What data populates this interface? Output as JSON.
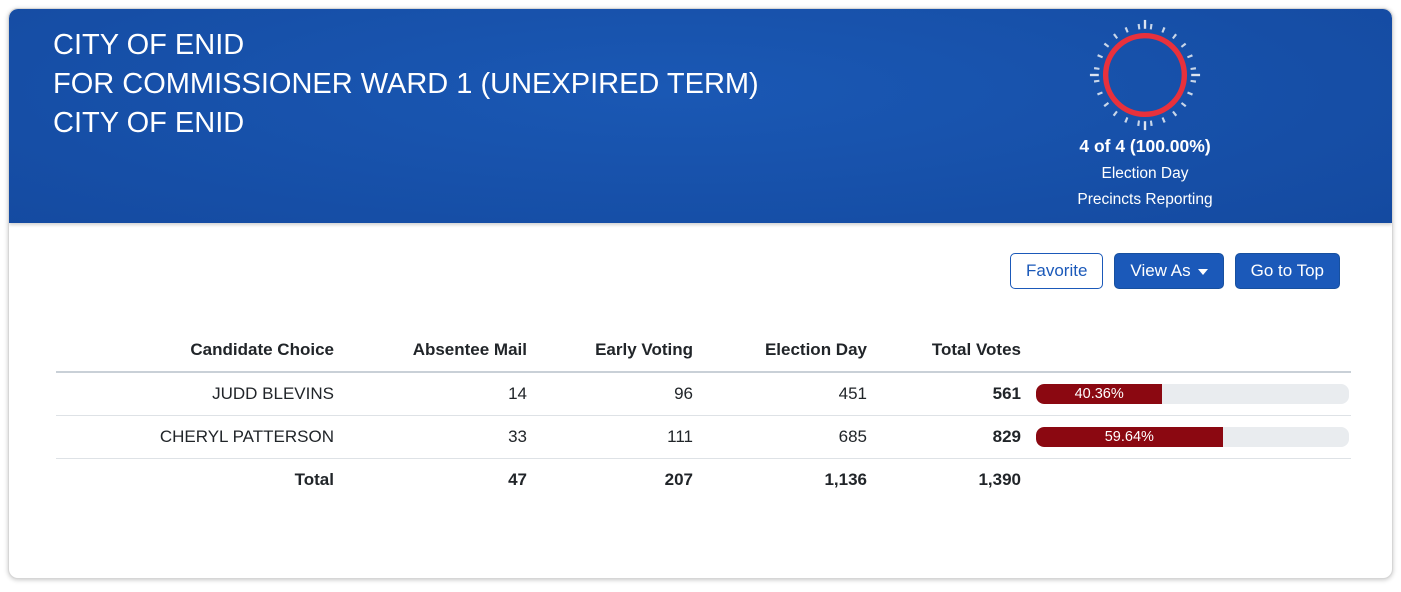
{
  "header": {
    "title_lines": [
      "CITY OF ENID",
      "FOR COMMISSIONER WARD 1 (UNEXPIRED TERM)",
      "CITY OF ENID"
    ],
    "precincts": {
      "summary": "4 of 4 (100.00%)",
      "label_line1": "Election Day",
      "label_line2": "Precincts Reporting"
    }
  },
  "toolbar": {
    "favorite_label": "Favorite",
    "view_as_label": "View As",
    "go_to_top_label": "Go to Top"
  },
  "results": {
    "columns": [
      "Candidate Choice",
      "Absentee Mail",
      "Early Voting",
      "Election Day",
      "Total Votes"
    ],
    "rows": [
      {
        "candidate": "JUDD BLEVINS",
        "absentee_mail": "14",
        "early_voting": "96",
        "election_day": "451",
        "total_votes": "561",
        "percent": "40.36%"
      },
      {
        "candidate": "CHERYL PATTERSON",
        "absentee_mail": "33",
        "early_voting": "111",
        "election_day": "685",
        "total_votes": "829",
        "percent": "59.64%"
      }
    ],
    "total": {
      "label": "Total",
      "absentee_mail": "47",
      "early_voting": "207",
      "election_day": "1,136",
      "total_votes": "1,390"
    }
  },
  "colors": {
    "header_blue": "#13479c",
    "header_blue_light": "#1a58b4",
    "header_blue_dark": "#113e8c",
    "accent_blue": "#1b59b9",
    "accent_blue_dark": "#17509f",
    "bar_maroon": "#8b0811",
    "bar_track": "#e9ecef",
    "gauge_ring_red": "#e8313c",
    "gauge_tick": "#e8edf5"
  }
}
